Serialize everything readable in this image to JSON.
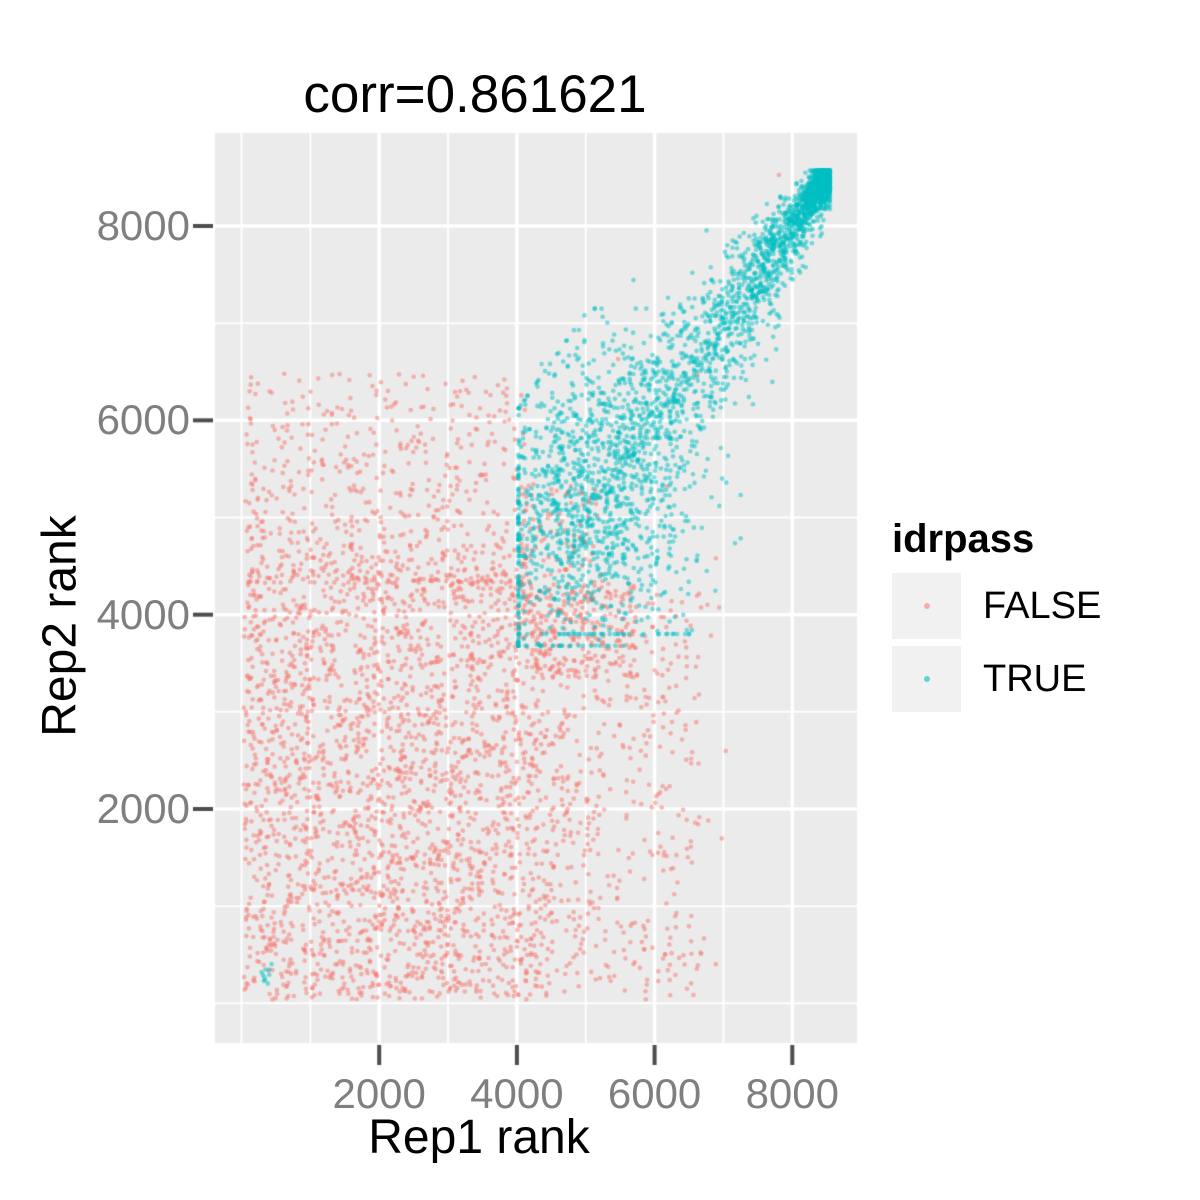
{
  "title": "corr=0.861621",
  "axes": {
    "x": {
      "label": "Rep1 rank",
      "ticks": [
        "2000",
        "4000",
        "6000",
        "8000"
      ]
    },
    "y": {
      "label": "Rep2 rank",
      "ticks": [
        "2000",
        "4000",
        "6000",
        "8000"
      ]
    }
  },
  "legend": {
    "title": "idrpass",
    "entries": [
      {
        "label": "FALSE",
        "color": "#F8766D"
      },
      {
        "label": "TRUE",
        "color": "#00BFC4"
      }
    ]
  },
  "chart_data": {
    "type": "scatter",
    "title": "corr=0.861621",
    "correlation": 0.861621,
    "xlabel": "Rep1 rank",
    "ylabel": "Rep2 rank",
    "x_ticks": [
      2000,
      4000,
      6000,
      8000
    ],
    "y_ticks": [
      2000,
      4000,
      6000,
      8000
    ],
    "x_minor_ticks": [
      0,
      1000,
      3000,
      5000,
      7000
    ],
    "y_minor_ticks": [
      0,
      1000,
      3000,
      5000,
      7000
    ],
    "x_domain": [
      -385,
      8940
    ],
    "y_domain": [
      -408,
      8957
    ],
    "grid": true,
    "legend_position": "right",
    "point_alpha": 0.5,
    "point_radius": 2.3,
    "seed": 20240613,
    "series": [
      {
        "name": "FALSE",
        "color": "#F8766D",
        "clusters": [
          {
            "kind": "uniform",
            "n": 2250,
            "x": [
              30,
              4230
            ],
            "y": [
              40,
              4330
            ]
          },
          {
            "kind": "fade_up",
            "n": 640,
            "x": [
              60,
              4150
            ],
            "y0": 4330,
            "dy": 2150,
            "pow": 1.7
          },
          {
            "kind": "fade_right",
            "n": 520,
            "x0": 4230,
            "dx": 2450,
            "pow": 1.5,
            "y": [
              40,
              4230
            ]
          },
          {
            "kind": "uniform",
            "n": 240,
            "x": [
              3950,
              5750
            ],
            "y": [
              3350,
              4330
            ]
          },
          {
            "kind": "uniform",
            "n": 85,
            "x": [
              4050,
              5250
            ],
            "y": [
              4330,
              5350
            ]
          },
          {
            "kind": "uniform",
            "n": 20,
            "x": [
              6200,
              7050
            ],
            "y": [
              250,
              4200
            ]
          },
          {
            "kind": "points",
            "pts": [
              [
                7807,
                8525
              ],
              [
                6620,
                6470
              ],
              [
                5470,
                6630
              ],
              [
                6180,
                5320
              ],
              [
                6890,
                4580
              ]
            ]
          }
        ]
      },
      {
        "name": "TRUE",
        "color": "#00BFC4",
        "clusters": [
          {
            "kind": "funnel",
            "n": 2300,
            "tip": 8490,
            "len": 4380,
            "pow": 2.2,
            "s0": 80,
            "s1": 680,
            "clamp_x": [
              4020,
              8545
            ],
            "clamp_y": [
              3680,
              8570
            ]
          },
          {
            "kind": "normal",
            "n": 850,
            "cx": 5150,
            "cy": 5250,
            "sx": 700,
            "sy": 780,
            "clamp_x": [
              4025,
              7250
            ],
            "clamp_y": [
              3800,
              7150
            ],
            "diag_hi": 2100,
            "diag_lo": 2700
          },
          {
            "kind": "normal",
            "n": 10,
            "cx": 380,
            "cy": 270,
            "sx": 55,
            "sy": 55
          }
        ]
      }
    ]
  },
  "style": {
    "panel_bg": "#EBEBEB",
    "grid_color": "#FFFFFF",
    "tick_color": "#4D4D4D",
    "tick_label_color": "#7F7F7F",
    "legend_key_bg": "#F1F1F1",
    "false_color": "#F8766D",
    "true_color": "#00BFC4"
  }
}
